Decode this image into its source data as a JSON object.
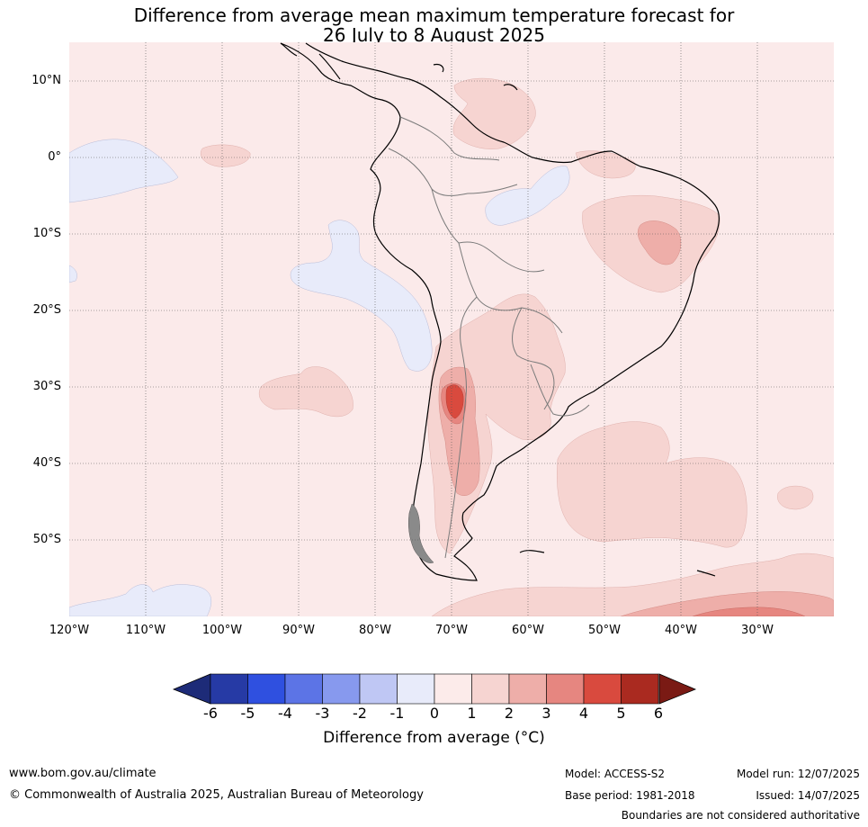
{
  "title": {
    "line1": "Difference from average mean maximum temperature forecast for",
    "line2": "26 July to 8 August 2025"
  },
  "map": {
    "lat_labels": [
      "10°N",
      "0°",
      "10°S",
      "20°S",
      "30°S",
      "40°S",
      "50°S"
    ],
    "lon_labels": [
      "120°W",
      "110°W",
      "100°W",
      "90°W",
      "80°W",
      "70°W",
      "60°W",
      "50°W",
      "40°W",
      "30°W"
    ],
    "background_color": "#fbeaea"
  },
  "colorbar": {
    "ticks": [
      "-6",
      "-5",
      "-4",
      "-3",
      "-2",
      "-1",
      "0",
      "1",
      "2",
      "3",
      "4",
      "5",
      "6"
    ],
    "colors": [
      "#263aa5",
      "#2f50e0",
      "#5c74e6",
      "#8799ee",
      "#bfc7f4",
      "#e8ebfa",
      "#fcebea",
      "#f6d4d1",
      "#eeaea9",
      "#e68680",
      "#d94a3e",
      "#aa2a20"
    ],
    "under_color": "#1d2b78",
    "over_color": "#7a1a14",
    "label": "Difference from average (°C)"
  },
  "footer": {
    "website": "www.bom.gov.au/climate",
    "copyright": "© Commonwealth of Australia 2025, Australian Bureau of Meteorology",
    "model": "Model: ACCESS-S2",
    "base_period": "Base period: 1981-2018",
    "model_run": "Model run: 12/07/2025",
    "issued": "Issued: 14/07/2025",
    "disclaimer": "Boundaries are not considered authoritative"
  }
}
